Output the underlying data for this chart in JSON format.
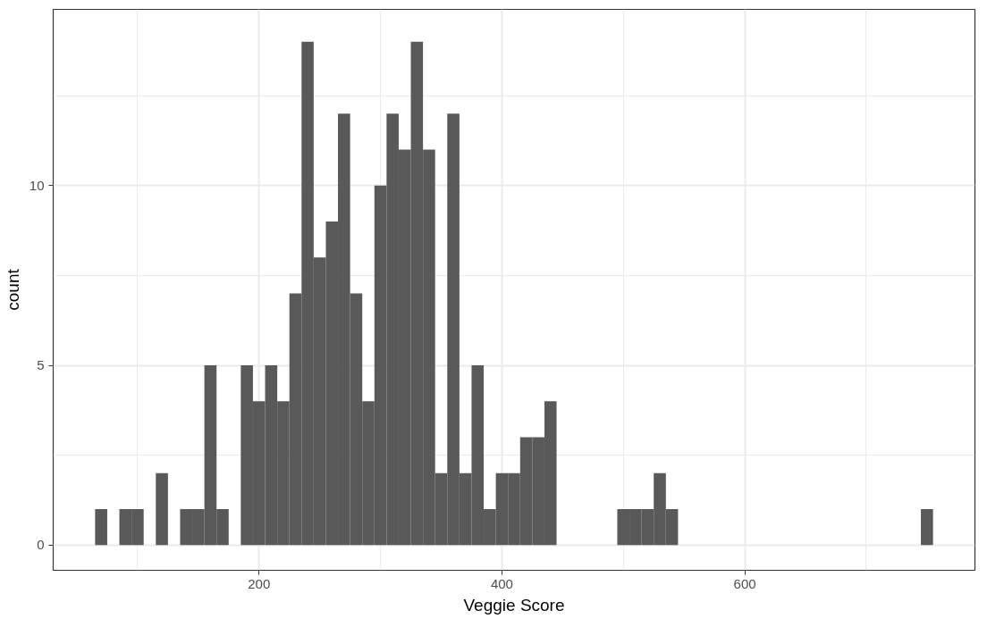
{
  "chart_data": {
    "type": "histogram",
    "xlabel": "Veggie Score",
    "ylabel": "count",
    "color": "#595959",
    "bins": [
      65,
      75,
      85,
      95,
      105,
      115,
      125,
      135,
      145,
      155,
      165,
      175,
      185,
      195,
      205,
      215,
      225,
      235,
      245,
      255,
      265,
      275,
      285,
      295,
      305,
      315,
      325,
      335,
      345,
      355,
      365,
      375,
      385,
      395,
      405,
      415,
      425,
      435,
      445,
      455,
      465,
      475,
      485,
      495,
      505,
      515,
      525,
      535,
      545,
      555,
      565,
      575,
      585,
      595,
      605,
      615,
      625,
      635,
      645,
      655,
      665,
      675,
      685,
      695,
      705,
      715,
      725,
      735,
      745,
      755
    ],
    "values": [
      1,
      0,
      1,
      1,
      0,
      2,
      0,
      1,
      1,
      5,
      1,
      0,
      5,
      4,
      5,
      4,
      7,
      14,
      8,
      9,
      12,
      7,
      4,
      10,
      12,
      11,
      14,
      11,
      2,
      12,
      2,
      5,
      1,
      2,
      2,
      3,
      3,
      4,
      0,
      0,
      0,
      0,
      0,
      1,
      1,
      1,
      2,
      1,
      0,
      0,
      0,
      0,
      0,
      0,
      0,
      0,
      0,
      0,
      0,
      0,
      0,
      0,
      0,
      0,
      0,
      0,
      0,
      0,
      1
    ],
    "xlim": [
      30.5,
      789.5
    ],
    "ylim": [
      -0.7,
      14.9
    ],
    "xticks": [
      200,
      400,
      600
    ],
    "yticks": [
      0,
      5,
      10
    ],
    "grid": true
  }
}
